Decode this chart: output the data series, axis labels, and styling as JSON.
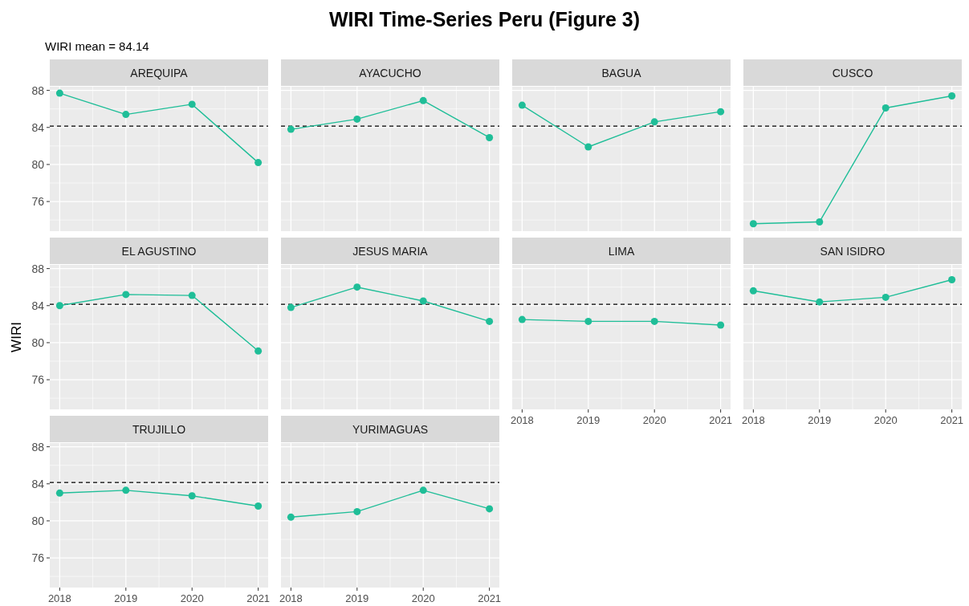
{
  "chart_data": [
    {
      "type": "other",
      "title": "WIRI Time-Series Peru (Figure 3)",
      "subtitle": "WIRI mean = 84.14"
    },
    {
      "type": "line",
      "title": "AREQUIPA",
      "x": [
        2018,
        2019,
        2020,
        2021
      ],
      "series": [
        {
          "color": "#1fbe98",
          "values": [
            87.7,
            85.4,
            86.5,
            80.2
          ]
        }
      ],
      "xlim": [
        2017.85,
        2021.15
      ],
      "ylim": [
        72.8,
        88.4
      ],
      "xticks": [
        2018,
        2019,
        2020,
        2021
      ],
      "yticks": [
        76,
        80,
        84,
        88
      ],
      "grid": true,
      "marker": "circle",
      "tick_labels": "y",
      "ref_lines": [
        {
          "axis": "y",
          "value": 84.14,
          "color": "#000000",
          "line_style": "dashed"
        }
      ]
    },
    {
      "type": "line",
      "title": "AYACUCHO",
      "x": [
        2018,
        2019,
        2020,
        2021
      ],
      "series": [
        {
          "color": "#1fbe98",
          "values": [
            83.8,
            84.9,
            86.9,
            82.9
          ]
        }
      ],
      "xlim": [
        2017.85,
        2021.15
      ],
      "ylim": [
        72.8,
        88.4
      ],
      "xticks": [
        2018,
        2019,
        2020,
        2021
      ],
      "yticks": [
        76,
        80,
        84,
        88
      ],
      "grid": true,
      "marker": "circle",
      "tick_labels": false,
      "ref_lines": [
        {
          "axis": "y",
          "value": 84.14,
          "color": "#000000",
          "line_style": "dashed"
        }
      ]
    },
    {
      "type": "line",
      "title": "BAGUA",
      "x": [
        2018,
        2019,
        2020,
        2021
      ],
      "series": [
        {
          "color": "#1fbe98",
          "values": [
            86.4,
            81.9,
            84.6,
            85.7
          ]
        }
      ],
      "xlim": [
        2017.85,
        2021.15
      ],
      "ylim": [
        72.8,
        88.4
      ],
      "xticks": [
        2018,
        2019,
        2020,
        2021
      ],
      "yticks": [
        76,
        80,
        84,
        88
      ],
      "grid": true,
      "marker": "circle",
      "tick_labels": false,
      "ref_lines": [
        {
          "axis": "y",
          "value": 84.14,
          "color": "#000000",
          "line_style": "dashed"
        }
      ]
    },
    {
      "type": "line",
      "title": "CUSCO",
      "x": [
        2018,
        2019,
        2020,
        2021
      ],
      "series": [
        {
          "color": "#1fbe98",
          "values": [
            73.6,
            73.8,
            86.1,
            87.4
          ]
        }
      ],
      "xlim": [
        2017.85,
        2021.15
      ],
      "ylim": [
        72.8,
        88.4
      ],
      "xticks": [
        2018,
        2019,
        2020,
        2021
      ],
      "yticks": [
        76,
        80,
        84,
        88
      ],
      "grid": true,
      "marker": "circle",
      "tick_labels": false,
      "ref_lines": [
        {
          "axis": "y",
          "value": 84.14,
          "color": "#000000",
          "line_style": "dashed"
        }
      ]
    },
    {
      "type": "line",
      "title": "EL AGUSTINO",
      "ylabel": "WIRI",
      "x": [
        2018,
        2019,
        2020,
        2021
      ],
      "series": [
        {
          "color": "#1fbe98",
          "values": [
            84.0,
            85.2,
            85.1,
            79.1
          ]
        }
      ],
      "xlim": [
        2017.85,
        2021.15
      ],
      "ylim": [
        72.8,
        88.4
      ],
      "xticks": [
        2018,
        2019,
        2020,
        2021
      ],
      "yticks": [
        76,
        80,
        84,
        88
      ],
      "grid": true,
      "marker": "circle",
      "tick_labels": "y",
      "ref_lines": [
        {
          "axis": "y",
          "value": 84.14,
          "color": "#000000",
          "line_style": "dashed"
        }
      ]
    },
    {
      "type": "line",
      "title": "JESUS MARIA",
      "x": [
        2018,
        2019,
        2020,
        2021
      ],
      "series": [
        {
          "color": "#1fbe98",
          "values": [
            83.8,
            86.0,
            84.5,
            82.3
          ]
        }
      ],
      "xlim": [
        2017.85,
        2021.15
      ],
      "ylim": [
        72.8,
        88.4
      ],
      "xticks": [
        2018,
        2019,
        2020,
        2021
      ],
      "yticks": [
        76,
        80,
        84,
        88
      ],
      "grid": true,
      "marker": "circle",
      "tick_labels": false,
      "ref_lines": [
        {
          "axis": "y",
          "value": 84.14,
          "color": "#000000",
          "line_style": "dashed"
        }
      ]
    },
    {
      "type": "line",
      "title": "LIMA",
      "x": [
        2018,
        2019,
        2020,
        2021
      ],
      "series": [
        {
          "color": "#1fbe98",
          "values": [
            82.5,
            82.3,
            82.3,
            81.9
          ]
        }
      ],
      "xlim": [
        2017.85,
        2021.15
      ],
      "ylim": [
        72.8,
        88.4
      ],
      "xticks": [
        2018,
        2019,
        2020,
        2021
      ],
      "yticks": [
        76,
        80,
        84,
        88
      ],
      "grid": true,
      "marker": "circle",
      "tick_labels": "x",
      "ref_lines": [
        {
          "axis": "y",
          "value": 84.14,
          "color": "#000000",
          "line_style": "dashed"
        }
      ]
    },
    {
      "type": "line",
      "title": "SAN ISIDRO",
      "x": [
        2018,
        2019,
        2020,
        2021
      ],
      "series": [
        {
          "color": "#1fbe98",
          "values": [
            85.6,
            84.4,
            84.9,
            86.8
          ]
        }
      ],
      "xlim": [
        2017.85,
        2021.15
      ],
      "ylim": [
        72.8,
        88.4
      ],
      "xticks": [
        2018,
        2019,
        2020,
        2021
      ],
      "yticks": [
        76,
        80,
        84,
        88
      ],
      "grid": true,
      "marker": "circle",
      "tick_labels": "x",
      "ref_lines": [
        {
          "axis": "y",
          "value": 84.14,
          "color": "#000000",
          "line_style": "dashed"
        }
      ]
    },
    {
      "type": "line",
      "title": "TRUJILLO",
      "x": [
        2018,
        2019,
        2020,
        2021
      ],
      "series": [
        {
          "color": "#1fbe98",
          "values": [
            83.0,
            83.3,
            82.7,
            81.6
          ]
        }
      ],
      "xlim": [
        2017.85,
        2021.15
      ],
      "ylim": [
        72.8,
        88.4
      ],
      "xticks": [
        2018,
        2019,
        2020,
        2021
      ],
      "yticks": [
        76,
        80,
        84,
        88
      ],
      "grid": true,
      "marker": "circle",
      "ref_lines": [
        {
          "axis": "y",
          "value": 84.14,
          "color": "#000000",
          "line_style": "dashed"
        }
      ]
    },
    {
      "type": "line",
      "title": "YURIMAGUAS",
      "x": [
        2018,
        2019,
        2020,
        2021
      ],
      "series": [
        {
          "color": "#1fbe98",
          "values": [
            80.4,
            81.0,
            83.3,
            81.3
          ]
        }
      ],
      "xlim": [
        2017.85,
        2021.15
      ],
      "ylim": [
        72.8,
        88.4
      ],
      "xticks": [
        2018,
        2019,
        2020,
        2021
      ],
      "yticks": [
        76,
        80,
        84,
        88
      ],
      "grid": true,
      "marker": "circle",
      "tick_labels": "x",
      "ref_lines": [
        {
          "axis": "y",
          "value": 84.14,
          "color": "#000000",
          "line_style": "dashed"
        }
      ]
    }
  ]
}
